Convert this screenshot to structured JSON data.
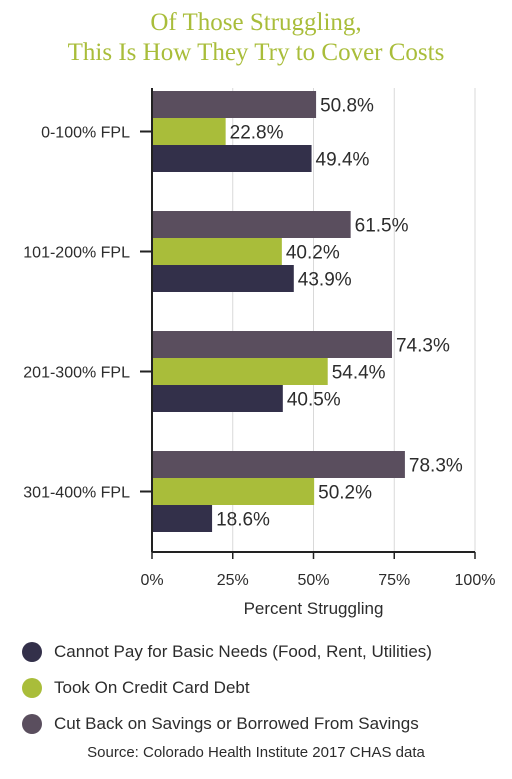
{
  "title": {
    "line1": "Of Those Struggling,",
    "line2": "This Is How They Try to Cover Costs"
  },
  "chart_data": {
    "type": "bar",
    "orientation": "horizontal",
    "title": "Of Those Struggling, This Is How They Try to Cover Costs",
    "xlabel": "Percent Struggling",
    "ylabel": "",
    "xlim": [
      0,
      100
    ],
    "x_ticks": [
      "0%",
      "25%",
      "50%",
      "75%",
      "100%"
    ],
    "categories": [
      "0-100% FPL",
      "101-200% FPL",
      "201-300% FPL",
      "301-400% FPL"
    ],
    "series": [
      {
        "name": "Cut Back on Savings or Borrowed From Savings",
        "color": "#5a4e5e",
        "values": [
          50.8,
          61.5,
          74.3,
          78.3
        ],
        "labels": [
          "50.8%",
          "61.5%",
          "74.3%",
          "78.3%"
        ]
      },
      {
        "name": "Took On Credit Card Debt",
        "color": "#a9bd3a",
        "values": [
          22.8,
          40.2,
          54.4,
          50.2
        ],
        "labels": [
          "22.8%",
          "40.2%",
          "54.4%",
          "50.2%"
        ]
      },
      {
        "name": "Cannot Pay for Basic Needs (Food, Rent, Utilities)",
        "color": "#33304a",
        "values": [
          49.4,
          43.9,
          40.5,
          18.6
        ],
        "labels": [
          "49.4%",
          "43.9%",
          "40.5%",
          "18.6%"
        ]
      }
    ],
    "grid": true,
    "legend_position": "bottom"
  },
  "legend": [
    {
      "label": "Cannot Pay for Basic Needs (Food, Rent, Utilities)",
      "color": "#33304a"
    },
    {
      "label": "Took On Credit Card Debt",
      "color": "#a9bd3a"
    },
    {
      "label": "Cut Back on Savings or Borrowed From Savings",
      "color": "#5a4e5e"
    }
  ],
  "source": "Source: Colorado Health Institute 2017 CHAS data"
}
